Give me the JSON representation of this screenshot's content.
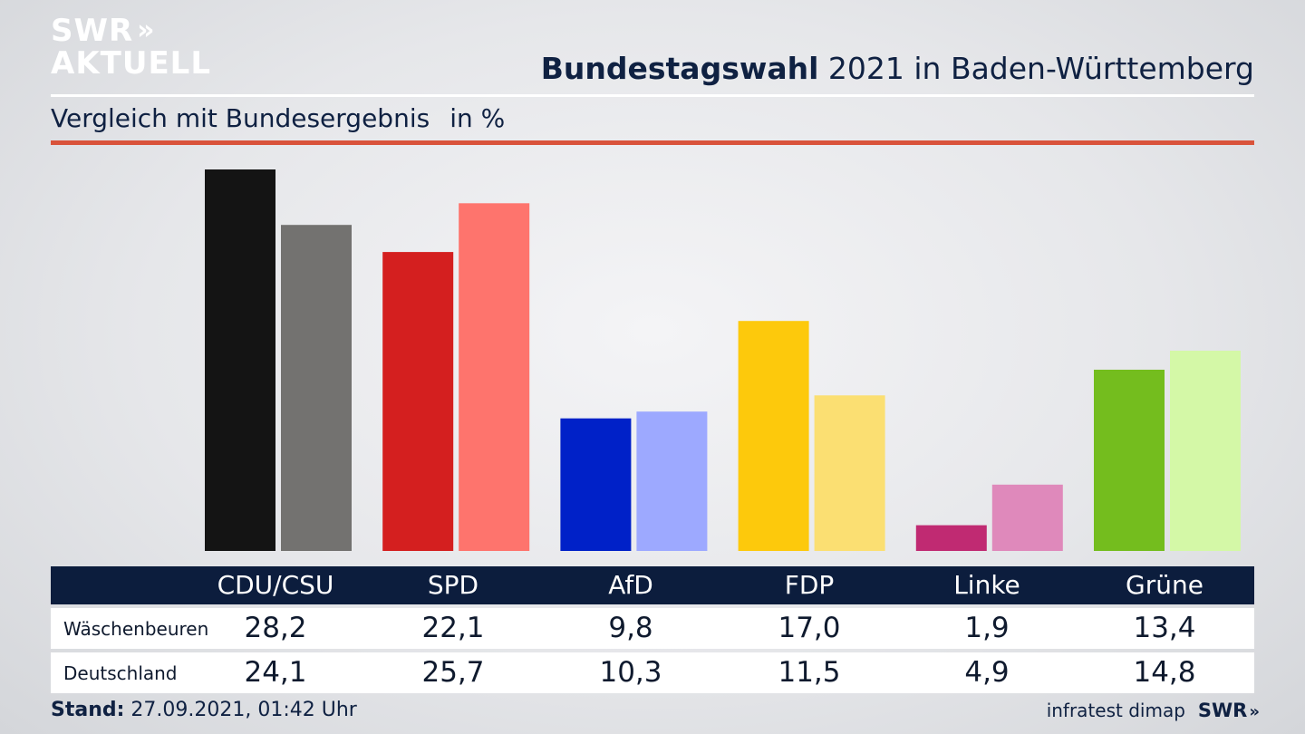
{
  "logo": {
    "line1": "SWR",
    "line2": "AKTUELL",
    "chevrons": "»"
  },
  "header": {
    "title_bold": "Bundestagswahl",
    "title_rest": " 2021 in Baden-Württemberg",
    "subtitle": "Vergleich mit Bundesergebnis",
    "unit": "in %"
  },
  "chart_data": {
    "type": "bar",
    "categories": [
      "CDU/CSU",
      "SPD",
      "AfD",
      "FDP",
      "Linke",
      "Grüne"
    ],
    "series": [
      {
        "name": "Wäschenbeuren",
        "values": [
          28.2,
          22.1,
          9.8,
          17.0,
          1.9,
          13.4
        ],
        "colors": [
          "#141414",
          "#d41f1f",
          "#0021c8",
          "#fdc90c",
          "#c02a72",
          "#74bd1e"
        ]
      },
      {
        "name": "Deutschland",
        "values": [
          24.1,
          25.7,
          10.3,
          11.5,
          4.9,
          14.8
        ],
        "colors": [
          "#737270",
          "#fe746d",
          "#9da9ff",
          "#fbdf72",
          "#df89bb",
          "#d4f8a7"
        ]
      }
    ],
    "ylim": [
      0,
      28.2
    ]
  },
  "table": {
    "headers": [
      "CDU/CSU",
      "SPD",
      "AfD",
      "FDP",
      "Linke",
      "Grüne"
    ],
    "rows": [
      {
        "label": "Wäschenbeuren",
        "values": [
          "28,2",
          "22,1",
          "9,8",
          "17,0",
          "1,9",
          "13,4"
        ]
      },
      {
        "label": "Deutschland",
        "values": [
          "24,1",
          "25,7",
          "10,3",
          "11,5",
          "4,9",
          "14,8"
        ]
      }
    ]
  },
  "footer": {
    "stand_label": "Stand:",
    "stand_value": " 27.09.2021, 01:42 Uhr",
    "source": "infratest dimap",
    "brand": "SWR",
    "brand_chevrons": "»"
  },
  "colors": {
    "navy": "#0c1d3d",
    "accent_red": "#d9533b"
  }
}
